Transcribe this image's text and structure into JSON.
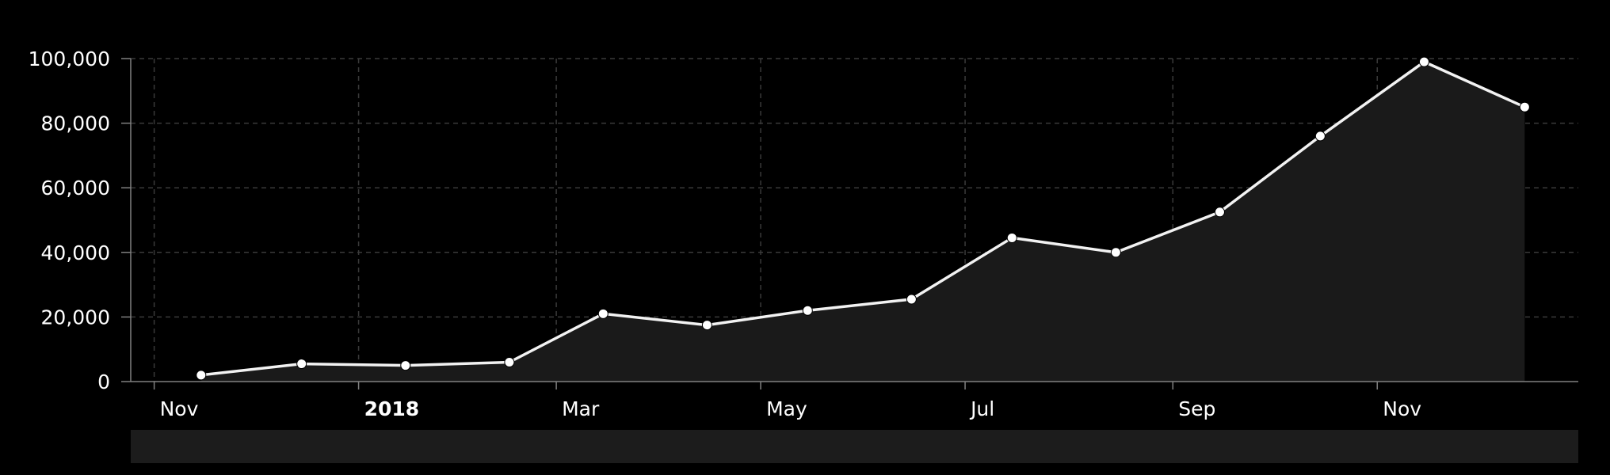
{
  "chart_data": {
    "type": "area",
    "title": "",
    "xlabel": "",
    "ylabel": "",
    "ylim": [
      0,
      100000
    ],
    "xlim": [
      "2017-10-25",
      "2018-12-31"
    ],
    "grid": true,
    "legend": "none",
    "colors": {
      "background": "#000000",
      "line": "#f2f2f2",
      "fill": "#1a1a1a",
      "grid": "#3a3a3a",
      "axis": "#808080",
      "navigator": "#1c1c1c"
    },
    "yticks": [
      {
        "value": 0,
        "label": "0"
      },
      {
        "value": 20000,
        "label": "20,000"
      },
      {
        "value": 40000,
        "label": "40,000"
      },
      {
        "value": 60000,
        "label": "60,000"
      },
      {
        "value": 80000,
        "label": "80,000"
      },
      {
        "value": 100000,
        "label": "100,000"
      }
    ],
    "xticks": [
      {
        "date": "2017-11-01",
        "label": "Nov",
        "bold": false
      },
      {
        "date": "2018-01-01",
        "label": "2018",
        "bold": true
      },
      {
        "date": "2018-03-01",
        "label": "Mar",
        "bold": false
      },
      {
        "date": "2018-05-01",
        "label": "May",
        "bold": false
      },
      {
        "date": "2018-07-01",
        "label": "Jul",
        "bold": false
      },
      {
        "date": "2018-09-01",
        "label": "Sep",
        "bold": false
      },
      {
        "date": "2018-11-01",
        "label": "Nov",
        "bold": false
      }
    ],
    "series": [
      {
        "points": [
          {
            "x": "2017-11-15",
            "y": 2000
          },
          {
            "x": "2017-12-15",
            "y": 5500
          },
          {
            "x": "2018-01-15",
            "y": 5000
          },
          {
            "x": "2018-02-15",
            "y": 6000
          },
          {
            "x": "2018-03-15",
            "y": 21000
          },
          {
            "x": "2018-04-15",
            "y": 17500
          },
          {
            "x": "2018-05-15",
            "y": 22000
          },
          {
            "x": "2018-06-15",
            "y": 25500
          },
          {
            "x": "2018-07-15",
            "y": 44500
          },
          {
            "x": "2018-08-15",
            "y": 40000
          },
          {
            "x": "2018-09-15",
            "y": 52500
          },
          {
            "x": "2018-10-15",
            "y": 76000
          },
          {
            "x": "2018-11-15",
            "y": 99000
          },
          {
            "x": "2018-12-15",
            "y": 85000
          }
        ]
      }
    ]
  }
}
